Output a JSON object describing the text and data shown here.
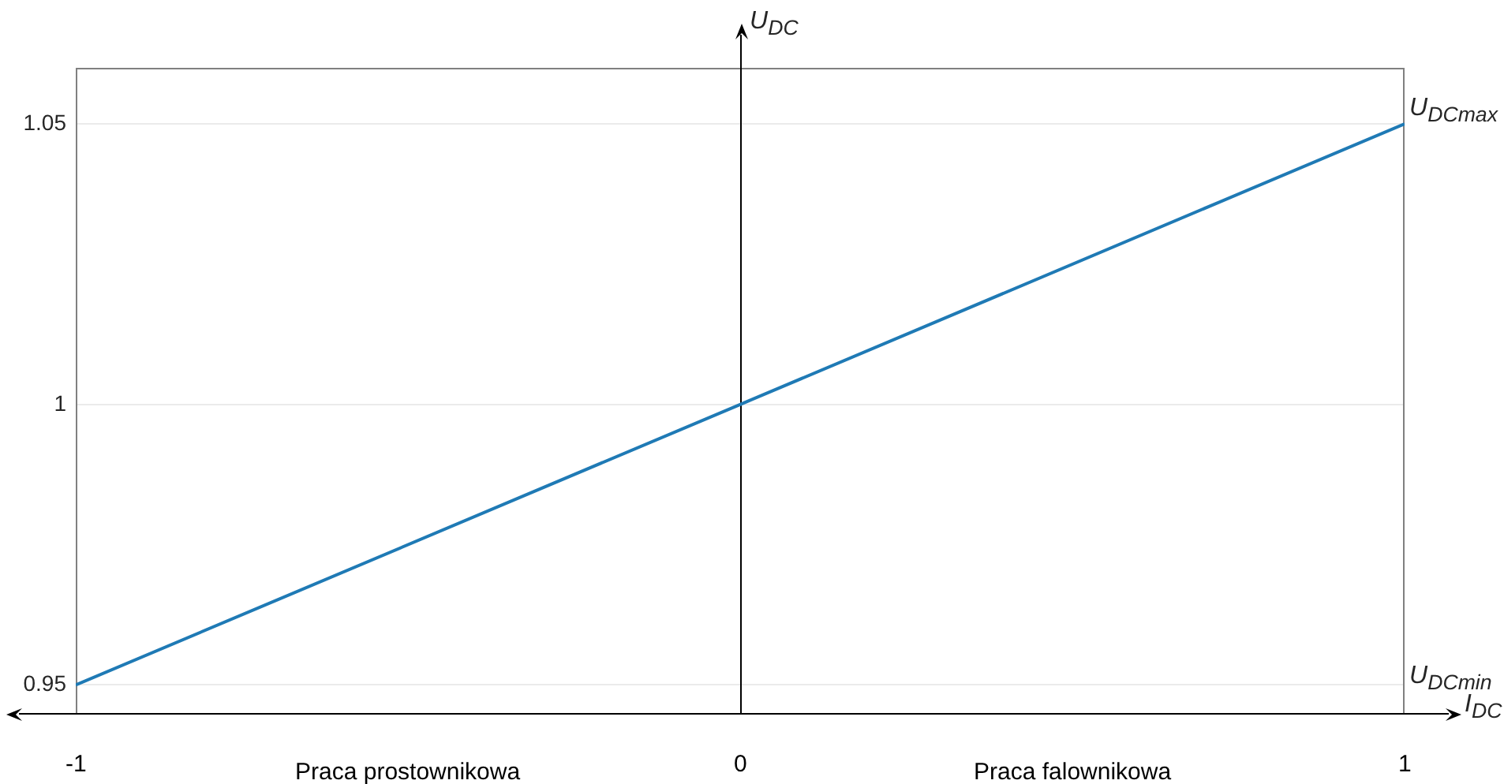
{
  "chart_data": {
    "type": "line",
    "xlabel": "I$_{DC}$",
    "ylabel": "U$_{DC}$",
    "x": [
      -1,
      0,
      1
    ],
    "series": [
      {
        "color": "#1f7ab5",
        "values": [
          0.95,
          1,
          1.05
        ]
      }
    ],
    "xlim": [
      -1,
      1
    ],
    "xticks": [
      -1,
      0,
      1
    ],
    "ylim": [
      0.945,
      1.06
    ],
    "yticks": [
      0.95,
      1,
      1.05
    ],
    "ref_lines": [
      {
        "axis": "x",
        "value": 0,
        "color": "#000000"
      }
    ],
    "grid": "y",
    "annotations": [
      "Praca prostownikowa",
      "Praca falownikowa",
      {
        "text": "U$_{DCmax}$",
        "x": 1,
        "y": 1.05
      },
      "U$_{DCmin}$"
    ]
  }
}
